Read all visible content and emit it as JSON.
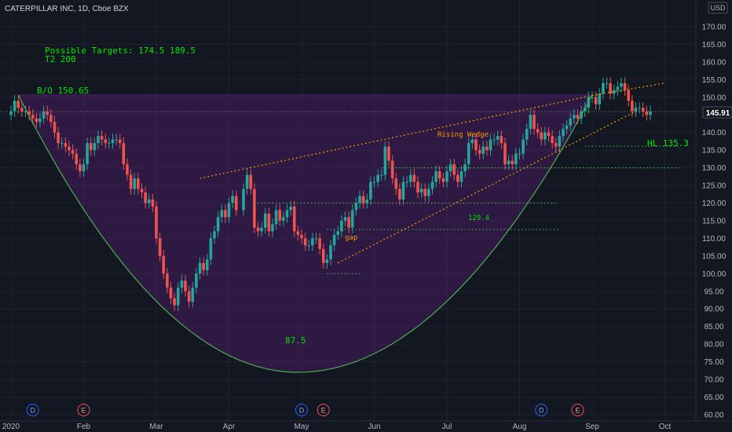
{
  "header": {
    "symbol_title": "CATERPILLAR INC, 1D, Cboe BZX",
    "currency": "USD"
  },
  "price_axis": {
    "ticks": [
      "170.00",
      "165.00",
      "160.00",
      "155.00",
      "150.00",
      "145.00",
      "140.00",
      "135.00",
      "130.00",
      "125.00",
      "120.00",
      "115.00",
      "110.00",
      "105.00",
      "100.00",
      "95.00",
      "90.00",
      "85.00",
      "80.00",
      "75.00",
      "70.00",
      "65.00",
      "60.00"
    ],
    "last_price": "145.91"
  },
  "time_axis": {
    "labels": [
      "2020",
      "Feb",
      "Mar",
      "Apr",
      "May",
      "Jun",
      "Jul",
      "Aug",
      "Sep",
      "Oct"
    ]
  },
  "annotations": {
    "targets_line1": "Possible Targets:  174.5  189.5",
    "targets_line2": "T2  200",
    "breakout": "B/O 150.65",
    "rising_wedge": "Rising Wedge",
    "gap": "gap",
    "level_129": "129.4",
    "higher_low": "HL  135.3",
    "cup_low": "87.5"
  },
  "events": [
    {
      "letter": "D",
      "month_pos": 0.3
    },
    {
      "letter": "E",
      "month_pos": 1.0
    },
    {
      "letter": "D",
      "month_pos": 4.0
    },
    {
      "letter": "E",
      "month_pos": 4.3
    },
    {
      "letter": "D",
      "month_pos": 7.3
    },
    {
      "letter": "E",
      "month_pos": 7.8
    }
  ],
  "colors": {
    "background": "#131722",
    "up_candle": "#26a69a",
    "down_candle": "#ef5350",
    "cup_line": "#4caf50",
    "cup_fill": "rgba(123,31,162,0.25)",
    "annotation_green": "#00e600",
    "wedge_orange": "#ff9800",
    "grid": "#1e222d",
    "axis_text": "#b2b5be"
  },
  "chart_data": {
    "type": "candlestick",
    "title": "CATERPILLAR INC, 1D, Cboe BZX",
    "ylim": [
      58,
      175
    ],
    "x_axis": "months starting Jan 2020",
    "closes": [
      [
        0.0,
        146
      ],
      [
        0.05,
        149
      ],
      [
        0.1,
        147
      ],
      [
        0.15,
        146
      ],
      [
        0.2,
        146
      ],
      [
        0.25,
        145
      ],
      [
        0.3,
        144
      ],
      [
        0.35,
        143
      ],
      [
        0.4,
        144
      ],
      [
        0.45,
        146
      ],
      [
        0.5,
        145
      ],
      [
        0.55,
        143
      ],
      [
        0.6,
        140
      ],
      [
        0.65,
        137
      ],
      [
        0.7,
        137
      ],
      [
        0.75,
        136
      ],
      [
        0.8,
        135
      ],
      [
        0.85,
        134
      ],
      [
        0.9,
        131
      ],
      [
        0.95,
        129
      ],
      [
        1.0,
        131
      ],
      [
        1.05,
        137
      ],
      [
        1.1,
        135
      ],
      [
        1.15,
        137
      ],
      [
        1.2,
        139
      ],
      [
        1.25,
        138
      ],
      [
        1.3,
        137
      ],
      [
        1.35,
        137
      ],
      [
        1.4,
        138
      ],
      [
        1.45,
        138
      ],
      [
        1.5,
        137
      ],
      [
        1.55,
        131
      ],
      [
        1.6,
        128
      ],
      [
        1.65,
        124
      ],
      [
        1.7,
        127
      ],
      [
        1.75,
        124
      ],
      [
        1.8,
        123
      ],
      [
        1.85,
        120
      ],
      [
        1.9,
        121
      ],
      [
        1.95,
        119
      ],
      [
        2.0,
        110
      ],
      [
        2.05,
        105
      ],
      [
        2.1,
        100
      ],
      [
        2.15,
        96
      ],
      [
        2.2,
        93
      ],
      [
        2.25,
        91
      ],
      [
        2.3,
        96
      ],
      [
        2.35,
        98
      ],
      [
        2.4,
        95
      ],
      [
        2.45,
        92
      ],
      [
        2.5,
        96
      ],
      [
        2.55,
        100
      ],
      [
        2.6,
        103
      ],
      [
        2.65,
        101
      ],
      [
        2.7,
        104
      ],
      [
        2.75,
        110
      ],
      [
        2.8,
        112
      ],
      [
        2.85,
        116
      ],
      [
        2.9,
        118
      ],
      [
        2.95,
        116
      ],
      [
        3.0,
        120
      ],
      [
        3.05,
        122
      ],
      [
        3.1,
        118
      ],
      [
        3.2,
        124
      ],
      [
        3.25,
        128
      ],
      [
        3.3,
        124
      ],
      [
        3.35,
        113
      ],
      [
        3.4,
        112
      ],
      [
        3.45,
        113
      ],
      [
        3.5,
        117
      ],
      [
        3.55,
        112
      ],
      [
        3.6,
        114
      ],
      [
        3.65,
        118
      ],
      [
        3.7,
        115
      ],
      [
        3.75,
        116
      ],
      [
        3.8,
        118
      ],
      [
        3.85,
        119
      ],
      [
        3.9,
        112
      ],
      [
        3.95,
        111
      ],
      [
        4.0,
        110
      ],
      [
        4.05,
        108
      ],
      [
        4.1,
        108
      ],
      [
        4.15,
        110
      ],
      [
        4.2,
        110
      ],
      [
        4.25,
        107
      ],
      [
        4.3,
        103
      ],
      [
        4.35,
        104
      ],
      [
        4.4,
        108
      ],
      [
        4.45,
        111
      ],
      [
        4.5,
        112
      ],
      [
        4.55,
        115
      ],
      [
        4.6,
        116
      ],
      [
        4.65,
        113
      ],
      [
        4.7,
        118
      ],
      [
        4.75,
        120
      ],
      [
        4.8,
        122
      ],
      [
        4.85,
        120
      ],
      [
        4.9,
        121
      ],
      [
        4.95,
        126
      ],
      [
        5.0,
        126
      ],
      [
        5.05,
        128
      ],
      [
        5.1,
        128
      ],
      [
        5.15,
        136
      ],
      [
        5.2,
        132
      ],
      [
        5.25,
        127
      ],
      [
        5.3,
        124
      ],
      [
        5.35,
        121
      ],
      [
        5.4,
        126
      ],
      [
        5.45,
        126
      ],
      [
        5.5,
        128
      ],
      [
        5.55,
        126
      ],
      [
        5.6,
        123
      ],
      [
        5.65,
        124
      ],
      [
        5.7,
        122
      ],
      [
        5.75,
        124
      ],
      [
        5.8,
        126
      ],
      [
        5.85,
        129
      ],
      [
        5.9,
        127
      ],
      [
        5.95,
        126
      ],
      [
        6.0,
        129
      ],
      [
        6.05,
        131
      ],
      [
        6.1,
        128
      ],
      [
        6.15,
        126
      ],
      [
        6.2,
        129
      ],
      [
        6.25,
        131
      ],
      [
        6.3,
        137
      ],
      [
        6.35,
        138
      ],
      [
        6.4,
        135
      ],
      [
        6.45,
        134
      ],
      [
        6.5,
        136
      ],
      [
        6.55,
        135
      ],
      [
        6.6,
        138
      ],
      [
        6.65,
        138
      ],
      [
        6.7,
        139
      ],
      [
        6.75,
        137
      ],
      [
        6.8,
        131
      ],
      [
        6.85,
        132
      ],
      [
        6.9,
        131
      ],
      [
        6.95,
        134
      ],
      [
        7.0,
        134
      ],
      [
        7.05,
        138
      ],
      [
        7.1,
        141
      ],
      [
        7.15,
        145
      ],
      [
        7.2,
        141
      ],
      [
        7.25,
        140
      ],
      [
        7.3,
        138
      ],
      [
        7.35,
        140
      ],
      [
        7.4,
        139
      ],
      [
        7.45,
        137
      ],
      [
        7.5,
        136
      ],
      [
        7.55,
        139
      ],
      [
        7.6,
        141
      ],
      [
        7.65,
        142
      ],
      [
        7.7,
        144
      ],
      [
        7.75,
        145
      ],
      [
        7.8,
        144
      ],
      [
        7.85,
        146
      ],
      [
        7.9,
        147
      ],
      [
        7.95,
        150
      ],
      [
        8.0,
        150
      ],
      [
        8.05,
        148
      ],
      [
        8.1,
        151
      ],
      [
        8.15,
        154
      ],
      [
        8.2,
        154
      ],
      [
        8.25,
        151
      ],
      [
        8.3,
        152
      ],
      [
        8.35,
        153
      ],
      [
        8.4,
        154
      ],
      [
        8.45,
        152
      ],
      [
        8.5,
        149
      ],
      [
        8.55,
        146
      ],
      [
        8.6,
        147
      ],
      [
        8.65,
        147
      ],
      [
        8.7,
        146
      ],
      [
        8.75,
        145
      ],
      [
        8.8,
        146
      ]
    ],
    "levels": {
      "breakout": 150.65,
      "higher_low": 135.3,
      "level_129": 129.4,
      "cup_low": 87.5,
      "last": 145.91,
      "targets": [
        174.5,
        189.5,
        200
      ]
    }
  }
}
